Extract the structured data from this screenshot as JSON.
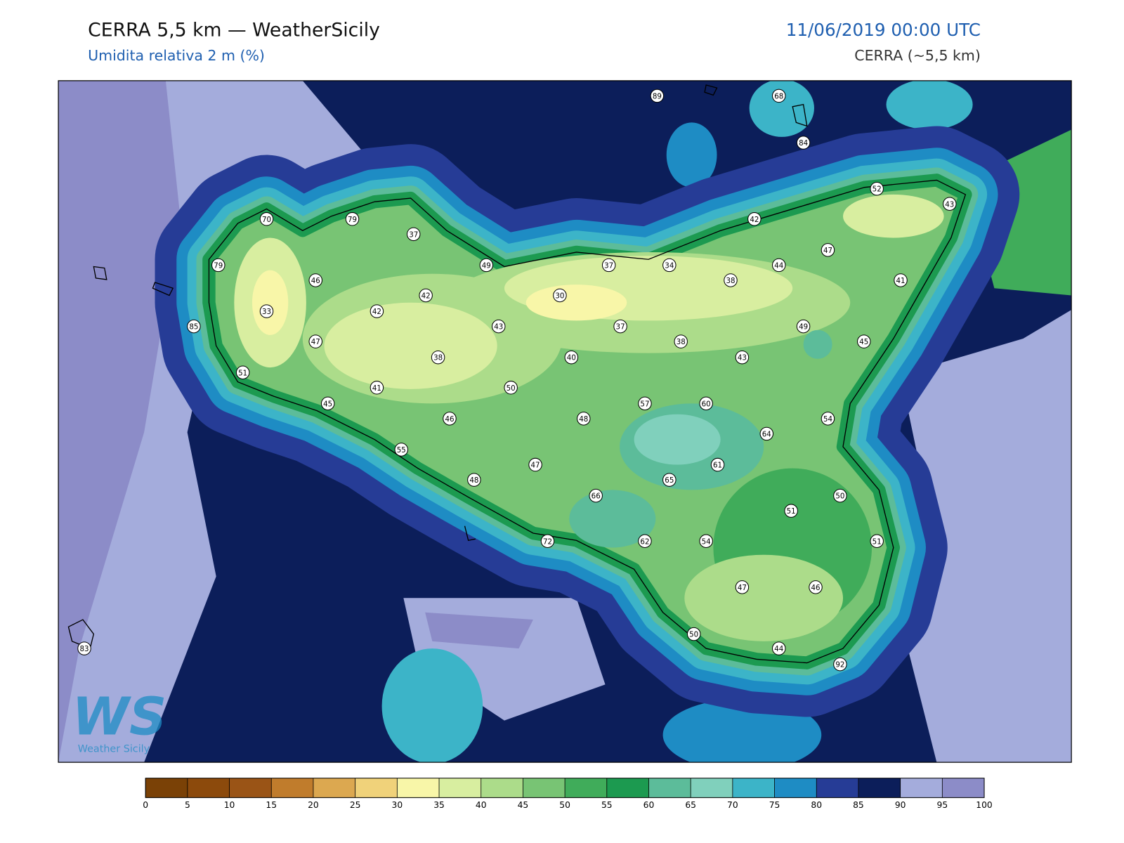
{
  "header": {
    "title": "CERRA 5,5 km — WeatherSicily",
    "subtitle": "Umidita relativa 2 m (%)",
    "datetime": "11/06/2019 00:00 UTC",
    "model": "CERRA (~5,5 km)"
  },
  "logo": {
    "mark": "WS",
    "name": "Weather Sicily"
  },
  "stations": [
    89,
    68,
    84,
    52,
    43,
    70,
    79,
    37,
    42,
    47,
    79,
    49,
    37,
    34,
    44,
    46,
    38,
    41,
    42,
    30,
    33,
    42,
    43,
    37,
    49,
    85,
    47,
    38,
    45,
    38,
    40,
    43,
    51,
    41,
    50,
    57,
    60,
    45,
    46,
    48,
    54,
    64,
    55,
    61,
    47,
    48,
    65,
    66,
    50,
    51,
    72,
    62,
    54,
    51,
    47,
    46,
    50,
    44,
    92,
    83
  ],
  "colorbar": {
    "ticks": [
      0,
      5,
      10,
      15,
      20,
      25,
      30,
      35,
      40,
      45,
      50,
      55,
      60,
      65,
      70,
      75,
      80,
      85,
      90,
      95,
      100
    ],
    "colors": [
      "#7a4106",
      "#8c4a0c",
      "#9a5416",
      "#c07c2c",
      "#dca850",
      "#f0d27a",
      "#f8f6a8",
      "#d8eea0",
      "#acdc8a",
      "#78c474",
      "#40ac5a",
      "#1c9a50",
      "#5cbc9a",
      "#80d0bc",
      "#3cb4c8",
      "#1e8cc4",
      "#263c96",
      "#0c1e5a",
      "#a4acdc",
      "#8c8cc8"
    ]
  }
}
